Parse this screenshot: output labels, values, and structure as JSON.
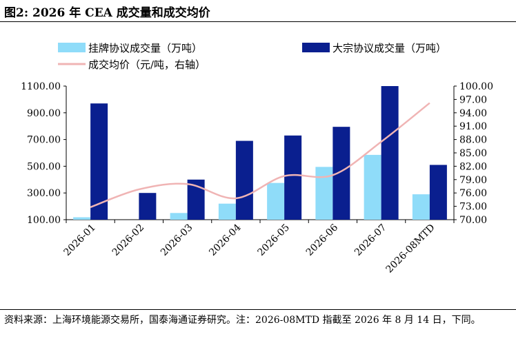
{
  "figure": {
    "title": "图2:  2026 年 CEA 成交量和成交均价",
    "source": "资料来源：上海环境能源交易所，国泰海通证券研究。注：2026-08MTD 指截至 2026 年 8 月 14 日，下同。"
  },
  "chart_data": {
    "type": "bar",
    "categories": [
      "2026-01",
      "2026-02",
      "2026-03",
      "2026-04",
      "2026-05",
      "2026-06",
      "2026-07",
      "2026-08MTD"
    ],
    "series": [
      {
        "name": "挂牌协议成交量（万吨）",
        "kind": "bar",
        "axis": "left",
        "color": "#8fdcf9",
        "values": [
          118,
          100,
          150,
          220,
          375,
          495,
          585,
          290
        ]
      },
      {
        "name": "大宗协议成交量（万吨）",
        "kind": "bar",
        "axis": "left",
        "color": "#0a1f8f",
        "values": [
          970,
          300,
          400,
          690,
          730,
          795,
          1100,
          510
        ]
      },
      {
        "name": "成交均价（元/吨，右轴）",
        "kind": "line",
        "axis": "right",
        "color": "#f0b4b4",
        "values": [
          72.8,
          76.8,
          78.0,
          74.8,
          79.8,
          80.0,
          87.5,
          96.2
        ]
      }
    ],
    "y_left": {
      "ylim": [
        100,
        1100
      ],
      "ticks": [
        "1100.00",
        "900.00",
        "700.00",
        "500.00",
        "300.00",
        "100.00"
      ]
    },
    "y_right": {
      "ylim": [
        70,
        100
      ],
      "ticks": [
        "100.00",
        "97.00",
        "94.00",
        "91.00",
        "88.00",
        "85.00",
        "82.00",
        "79.00",
        "76.00",
        "73.00",
        "70.00"
      ]
    },
    "legend": "top",
    "grid": false
  }
}
